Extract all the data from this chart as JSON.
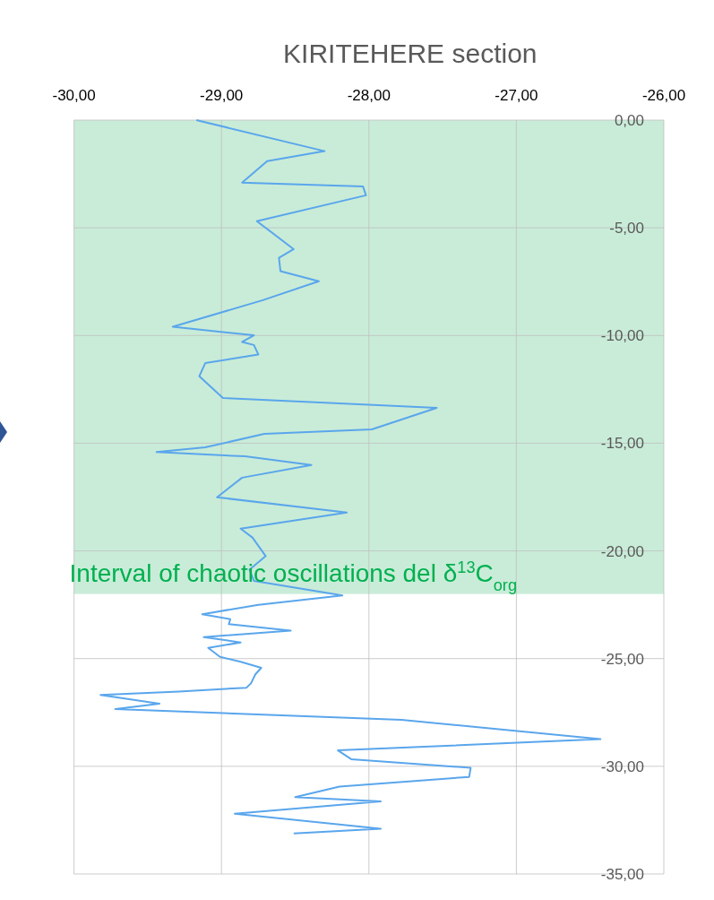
{
  "chart_data": {
    "type": "line",
    "title": "KIRITEHERE section",
    "xlim": [
      -30,
      -26
    ],
    "xticks": [
      {
        "value": -30,
        "label": "-30,00"
      },
      {
        "value": -29,
        "label": "-29,00"
      },
      {
        "value": -28,
        "label": "-28,00"
      },
      {
        "value": -27,
        "label": "-27,00"
      },
      {
        "value": -26,
        "label": "-26,00"
      }
    ],
    "ylim": [
      -35,
      0
    ],
    "yticks": [
      {
        "value": 0,
        "label": "0,00"
      },
      {
        "value": -5,
        "label": "-5,00"
      },
      {
        "value": -10,
        "label": "-10,00"
      },
      {
        "value": -15,
        "label": "-15,00"
      },
      {
        "value": -20,
        "label": "-20,00"
      },
      {
        "value": -25,
        "label": "-25,00"
      },
      {
        "value": -30,
        "label": "-30,00"
      },
      {
        "value": -35,
        "label": "-35,00"
      }
    ],
    "grid": true,
    "bands": [
      {
        "axis": "y",
        "from": 0,
        "to": -22,
        "label": "Interval of chaotic oscillations del δ$^{13}$C$_{org}$",
        "color": "#c9ecd8"
      }
    ],
    "series": [
      {
        "color": "#5aa6ec",
        "x": [
          -29.17,
          -28.3,
          -28.69,
          -28.86,
          -28.04,
          -28.02,
          -28.76,
          -28.51,
          -28.61,
          -28.6,
          -28.34,
          -28.72,
          -29.33,
          -28.78,
          -28.86,
          -28.78,
          -28.75,
          -29.11,
          -29.15,
          -28.99,
          -27.54,
          -27.98,
          -28.71,
          -29.11,
          -29.44,
          -28.84,
          -28.39,
          -28.86,
          -29.03,
          -28.15,
          -28.87,
          -28.79,
          -28.7,
          -28.81,
          -28.78,
          -28.18,
          -28.75,
          -29.13,
          -28.94,
          -28.95,
          -28.53,
          -29.12,
          -28.87,
          -29.09,
          -29.01,
          -28.87,
          -28.73,
          -28.77,
          -28.8,
          -28.83,
          -29.29,
          -29.82,
          -29.42,
          -29.72,
          -27.78,
          -26.43,
          -28.21,
          -28.12,
          -27.31,
          -27.32,
          -28.2,
          -28.5,
          -27.92,
          -28.91,
          -27.92,
          -28.51
        ],
        "values": [
          0,
          -1.44,
          -1.9,
          -2.9,
          -3.08,
          -3.49,
          -4.69,
          -5.99,
          -6.39,
          -7.01,
          -7.48,
          -8.36,
          -9.59,
          -9.99,
          -10.3,
          -10.44,
          -10.88,
          -11.28,
          -11.89,
          -12.9,
          -13.36,
          -14.36,
          -14.57,
          -15.19,
          -15.41,
          -15.61,
          -16.01,
          -16.6,
          -17.51,
          -18.22,
          -18.97,
          -19.38,
          -20.24,
          -20.87,
          -21.39,
          -22.07,
          -22.5,
          -22.94,
          -23.17,
          -23.4,
          -23.7,
          -24.0,
          -24.25,
          -24.5,
          -24.92,
          -25.15,
          -25.43,
          -25.73,
          -26.15,
          -26.35,
          -26.53,
          -26.69,
          -27.09,
          -27.34,
          -27.84,
          -28.74,
          -29.26,
          -29.67,
          -30.07,
          -30.49,
          -30.94,
          -31.43,
          -31.63,
          -32.2,
          -32.9,
          -33.12
        ]
      }
    ]
  }
}
